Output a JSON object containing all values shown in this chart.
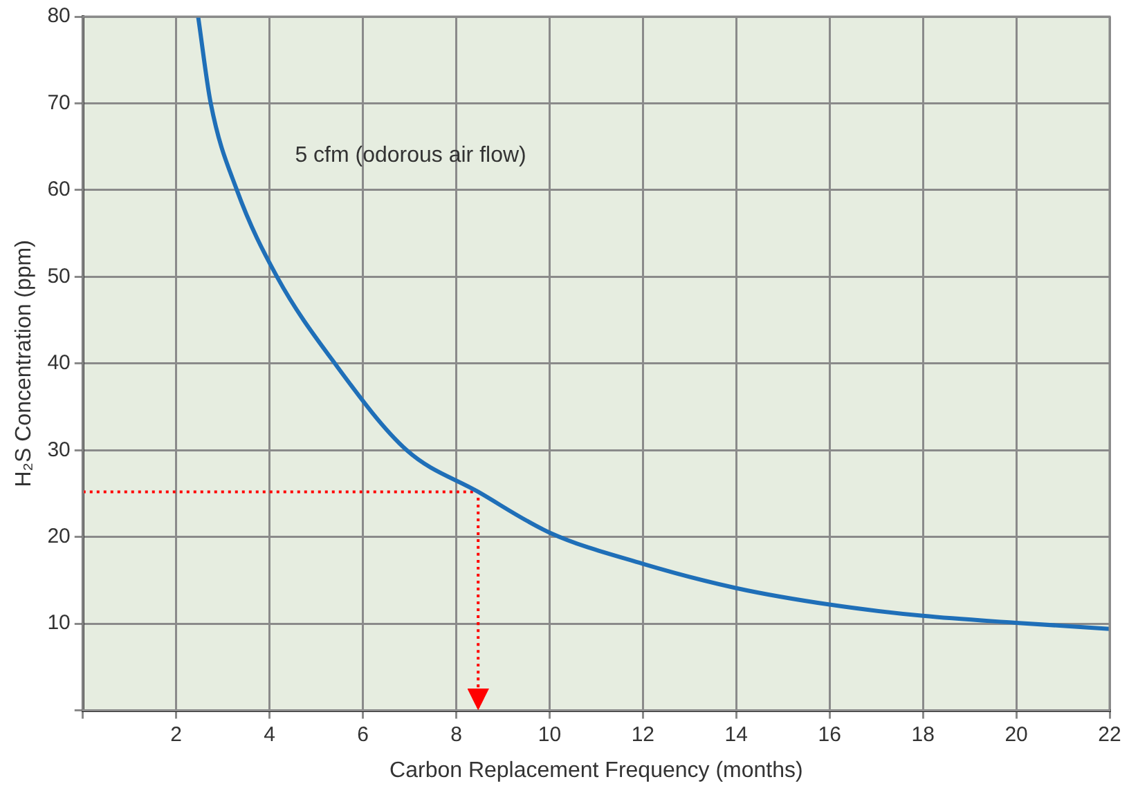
{
  "chart_data": {
    "type": "line",
    "xlabel": "Carbon Replacement Frequency (months)",
    "ylabel": "H₂S Concentration (ppm)",
    "xlim": [
      0,
      22
    ],
    "xticks": [
      {
        "value": 0,
        "label": null
      },
      2,
      4,
      6,
      8,
      10,
      12,
      14,
      16,
      18,
      20,
      22
    ],
    "ylim": [
      0,
      80
    ],
    "yticks": [
      {
        "value": 0,
        "label": null
      },
      10,
      20,
      30,
      40,
      50,
      60,
      70,
      80
    ],
    "grid": true,
    "legend": false,
    "marker": "none",
    "series": [
      {
        "name": "5 cfm (odorous air flow)",
        "color": "#1f6fb8",
        "line_style": "solid",
        "x": [
          2.47,
          2.74,
          3.3,
          4.16,
          5.4,
          6.94,
          8.47,
          10,
          12,
          14,
          16,
          18,
          20,
          22
        ],
        "values": [
          80,
          70,
          60,
          50,
          40,
          30,
          25.2,
          20.5,
          16.9,
          14.1,
          12.2,
          10.9,
          10.1,
          9.4
        ]
      },
      {
        "color": "#ff0000",
        "line_style": "dotted",
        "x": [
          0,
          8.47,
          8.47
        ],
        "values": [
          25.2,
          25.2,
          0
        ]
      }
    ]
  }
}
